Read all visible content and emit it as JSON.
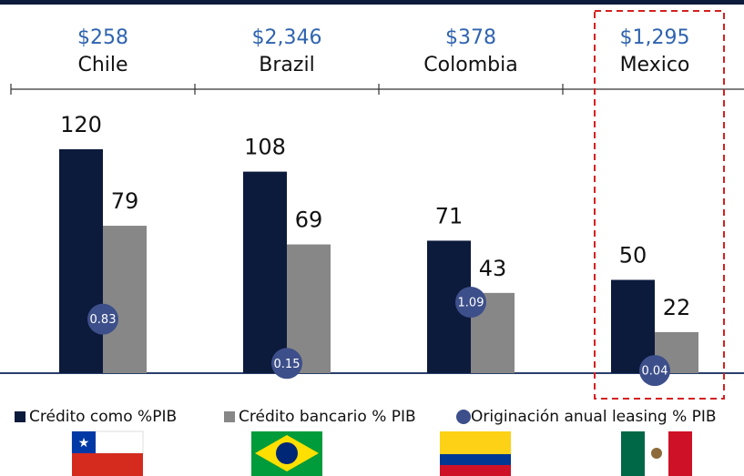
{
  "chart_data": {
    "type": "bar",
    "categories": [
      "Chile",
      "Brazil",
      "Colombia",
      "Mexico"
    ],
    "header_labels": [
      "$258",
      "$2,346",
      "$378",
      "$1,295"
    ],
    "series": [
      {
        "name": "Crédito como %PIB",
        "color": "#0c1a3c",
        "values": [
          120,
          108,
          71,
          50
        ]
      },
      {
        "name": "Crédito bancario % PIB",
        "color": "#878787",
        "values": [
          79,
          69,
          43,
          22
        ]
      },
      {
        "name": "Originación anual leasing % PIB",
        "color": "#3d4f8a",
        "values": [
          0.83,
          0.15,
          1.09,
          0.04
        ],
        "axis": "y2"
      }
    ],
    "ylim": [
      0,
      150
    ],
    "y2lim": [
      0,
      4.3
    ],
    "grid": false,
    "legend": "bottom"
  }
}
